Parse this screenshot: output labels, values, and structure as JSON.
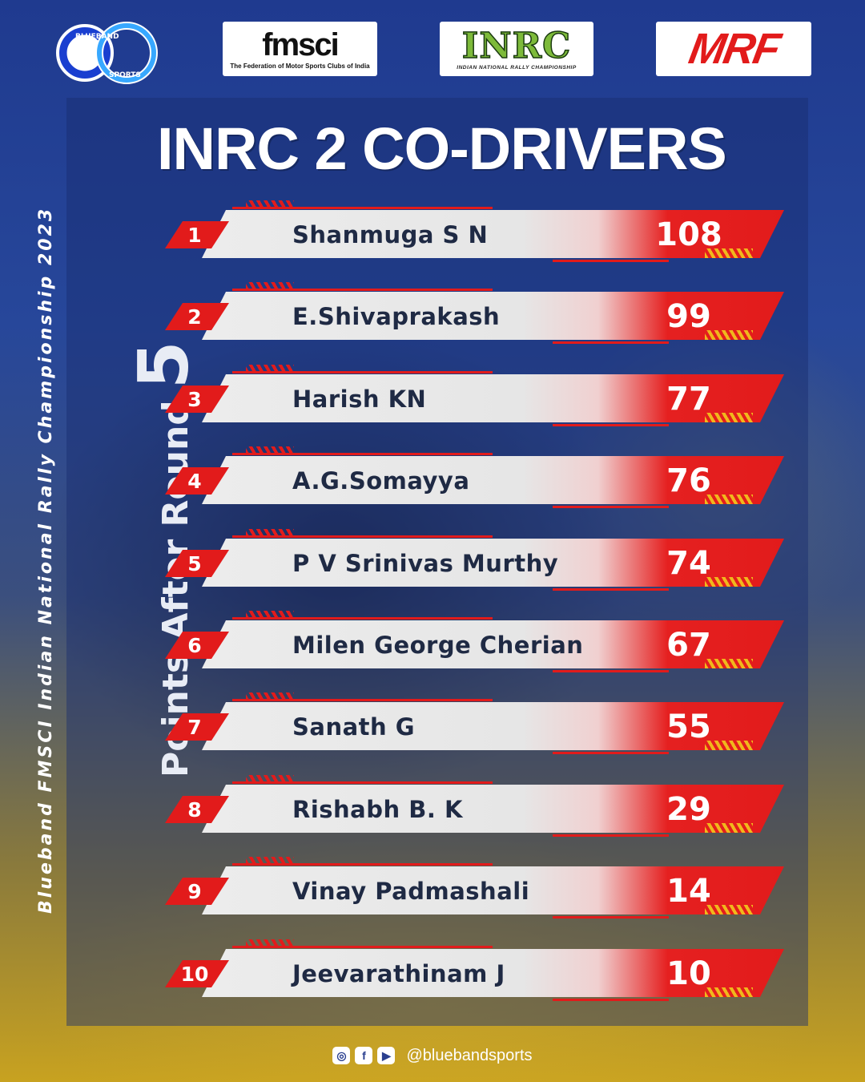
{
  "logos": {
    "blueband": {
      "top": "BLUEBAND",
      "bottom": "SPORTS",
      "colors": [
        "#1a3fd0",
        "#37a8ff"
      ]
    },
    "fmsci": {
      "main": "fmsci",
      "sub": "The Federation of Motor Sports Clubs of India"
    },
    "inrc": {
      "main": "INRC",
      "sub": "INDIAN NATIONAL RALLY CHAMPIONSHIP"
    },
    "mrf": {
      "main": "MRF",
      "color": "#e21b1b"
    }
  },
  "title": "INRC 2 CO-DRIVERS",
  "side_text": "Blueband  FMSCI  Indian  National  Rally  Championship  2023",
  "round_label": "Points After Round",
  "round_number": "5",
  "standings": [
    {
      "rank": "1",
      "name": "Shanmuga S N",
      "points": "108"
    },
    {
      "rank": "2",
      "name": "E.Shivaprakash",
      "points": "99"
    },
    {
      "rank": "3",
      "name": "Harish KN",
      "points": "77"
    },
    {
      "rank": "4",
      "name": "A.G.Somayya",
      "points": "76"
    },
    {
      "rank": "5",
      "name": "P V Srinivas Murthy",
      "points": "74"
    },
    {
      "rank": "6",
      "name": "Milen George Cherian",
      "points": "67"
    },
    {
      "rank": "7",
      "name": "Sanath G",
      "points": "55"
    },
    {
      "rank": "8",
      "name": "Rishabh B. K",
      "points": "29"
    },
    {
      "rank": "9",
      "name": "Vinay Padmashali",
      "points": "14"
    },
    {
      "rank": "10",
      "name": "Jeevarathinam J",
      "points": "10"
    }
  ],
  "footer": {
    "icons": [
      "instagram-icon",
      "facebook-icon",
      "youtube-icon"
    ],
    "handle": "@bluebandsports"
  },
  "colors": {
    "accent_red": "#e21b1b",
    "accent_yellow": "#f0b81c",
    "background_blue": "#1f3a8f"
  }
}
